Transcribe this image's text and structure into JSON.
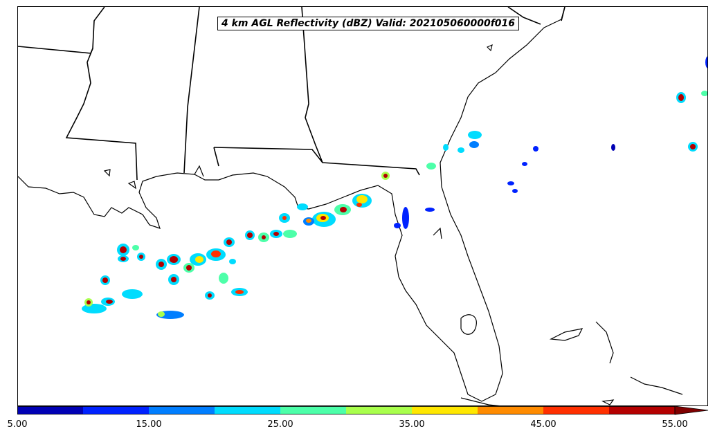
{
  "title": "4 km AGL Reflectivity (dBZ) Valid: 202105060000f016",
  "colorbar": {
    "colors": [
      "#0000b4",
      "#0022ff",
      "#007eff",
      "#00dcfe",
      "#4dffa9",
      "#a9ff4d",
      "#ffe700",
      "#ff8b00",
      "#ff3000",
      "#b40000",
      "#800000"
    ],
    "tick_labels": [
      "5.00",
      "15.00",
      "25.00",
      "35.00",
      "45.00",
      "55.00"
    ],
    "extend": "max"
  },
  "icons": {
    "coastline": "coastline-outline",
    "state_border": "state-border-line"
  }
}
